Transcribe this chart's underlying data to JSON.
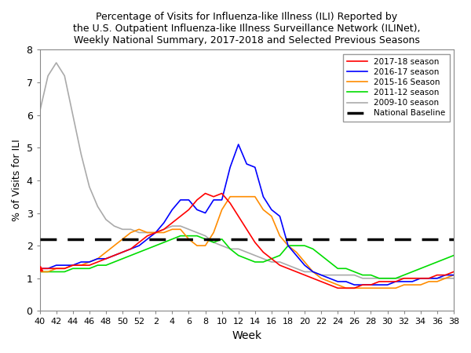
{
  "title": "Percentage of Visits for Influenza-like Illness (ILI) Reported by\nthe U.S. Outpatient Influenza-like Illness Surveillance Network (ILINet),\nWeekly National Summary, 2017-2018 and Selected Previous Seasons",
  "xlabel": "Week",
  "ylabel": "% of Visits for ILI",
  "ylim": [
    0.0,
    8.0
  ],
  "yticks": [
    0.0,
    1.0,
    2.0,
    3.0,
    4.0,
    5.0,
    6.0,
    7.0,
    8.0
  ],
  "national_baseline": 2.2,
  "weeks": [
    40,
    41,
    42,
    43,
    44,
    45,
    46,
    47,
    48,
    49,
    50,
    51,
    52,
    1,
    2,
    3,
    4,
    5,
    6,
    7,
    8,
    9,
    10,
    11,
    12,
    13,
    14,
    15,
    16,
    17,
    18,
    19,
    20,
    21,
    22,
    23,
    24,
    25,
    26,
    27,
    28,
    29,
    30,
    31,
    32,
    33,
    34,
    35,
    36,
    37,
    38
  ],
  "season_2017_18": [
    1.3,
    1.3,
    1.3,
    1.3,
    1.4,
    1.4,
    1.4,
    1.5,
    1.6,
    1.7,
    1.8,
    1.9,
    2.1,
    2.3,
    2.4,
    2.5,
    2.7,
    2.9,
    3.1,
    3.4,
    3.6,
    3.5,
    3.6,
    3.3,
    2.9,
    2.5,
    2.1,
    1.8,
    1.6,
    1.4,
    1.3,
    1.2,
    1.1,
    1.0,
    0.9,
    0.8,
    0.7,
    0.7,
    0.7,
    0.8,
    0.8,
    0.9,
    0.9,
    0.9,
    1.0,
    1.0,
    1.0,
    1.0,
    1.1,
    1.1,
    1.2
  ],
  "season_2016_17": [
    1.3,
    1.3,
    1.4,
    1.4,
    1.4,
    1.5,
    1.5,
    1.6,
    1.6,
    1.7,
    1.8,
    1.9,
    2.0,
    2.2,
    2.4,
    2.7,
    3.1,
    3.4,
    3.4,
    3.1,
    3.0,
    3.4,
    3.4,
    4.4,
    5.1,
    4.5,
    4.4,
    3.5,
    3.1,
    2.9,
    2.0,
    1.7,
    1.4,
    1.2,
    1.1,
    1.0,
    0.9,
    0.9,
    0.8,
    0.8,
    0.8,
    0.8,
    0.8,
    0.9,
    0.9,
    0.9,
    1.0,
    1.0,
    1.0,
    1.1,
    1.1
  ],
  "season_2015_16": [
    1.2,
    1.2,
    1.3,
    1.3,
    1.4,
    1.4,
    1.5,
    1.6,
    1.8,
    2.0,
    2.2,
    2.4,
    2.5,
    2.4,
    2.4,
    2.4,
    2.5,
    2.5,
    2.2,
    2.0,
    2.0,
    2.4,
    3.1,
    3.5,
    3.5,
    3.5,
    3.5,
    3.1,
    2.9,
    2.3,
    2.0,
    1.8,
    1.5,
    1.2,
    1.0,
    0.9,
    0.8,
    0.7,
    0.7,
    0.7,
    0.7,
    0.7,
    0.7,
    0.7,
    0.8,
    0.8,
    0.8,
    0.9,
    0.9,
    1.0,
    1.1
  ],
  "season_2011_12": [
    1.2,
    1.2,
    1.2,
    1.2,
    1.3,
    1.3,
    1.3,
    1.4,
    1.4,
    1.5,
    1.6,
    1.7,
    1.8,
    1.9,
    2.0,
    2.1,
    2.2,
    2.3,
    2.3,
    2.3,
    2.2,
    2.1,
    2.2,
    1.9,
    1.7,
    1.6,
    1.5,
    1.5,
    1.6,
    1.7,
    2.0,
    2.0,
    2.0,
    1.9,
    1.7,
    1.5,
    1.3,
    1.3,
    1.2,
    1.1,
    1.1,
    1.0,
    1.0,
    1.0,
    1.1,
    1.2,
    1.3,
    1.4,
    1.5,
    1.6,
    1.7
  ],
  "season_2009_10": [
    6.1,
    7.2,
    7.6,
    7.2,
    6.0,
    4.8,
    3.8,
    3.2,
    2.8,
    2.6,
    2.5,
    2.5,
    2.4,
    2.4,
    2.4,
    2.5,
    2.6,
    2.6,
    2.5,
    2.4,
    2.3,
    2.1,
    2.0,
    1.9,
    1.9,
    1.8,
    1.7,
    1.6,
    1.5,
    1.5,
    1.4,
    1.3,
    1.2,
    1.2,
    1.1,
    1.1,
    1.1,
    1.1,
    1.1,
    1.0,
    1.0,
    1.0,
    1.0,
    1.0,
    1.0,
    1.0,
    1.0,
    1.0,
    1.0,
    1.0,
    1.0
  ],
  "color_2017_18": "#ff0000",
  "color_2016_17": "#0000ff",
  "color_2015_16": "#ff8c00",
  "color_2011_12": "#00dd00",
  "color_2009_10": "#aaaaaa",
  "color_baseline": "#000000",
  "xtick_labels": [
    "40",
    "42",
    "44",
    "46",
    "48",
    "50",
    "52",
    "2",
    "4",
    "6",
    "8",
    "10",
    "12",
    "14",
    "16",
    "18",
    "20",
    "22",
    "24",
    "26",
    "28",
    "30",
    "32",
    "34",
    "36",
    "38"
  ],
  "xtick_positions": [
    0,
    2,
    4,
    6,
    8,
    10,
    12,
    14,
    16,
    18,
    20,
    22,
    24,
    26,
    28,
    30,
    32,
    34,
    36,
    38,
    40,
    42,
    44,
    46,
    48,
    50
  ]
}
